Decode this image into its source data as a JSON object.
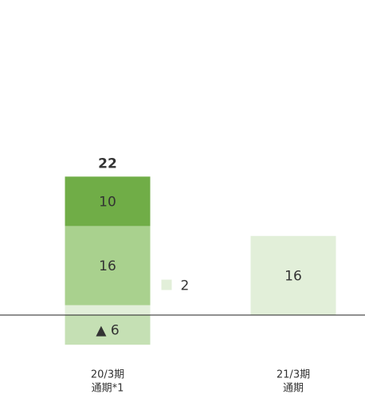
{
  "chart_data": {
    "type": "stacked_bar",
    "categories": [
      [
        "20/3期",
        "通期*1"
      ],
      [
        "21/3期",
        "通期"
      ]
    ],
    "series": [
      {
        "color": "#c5e0b4",
        "values": [
          -6,
          null
        ],
        "value_labels": [
          "▲ 6",
          null
        ]
      },
      {
        "color": "#e2efd9",
        "values": [
          2,
          16
        ]
      },
      {
        "color": "#a9d18e",
        "values": [
          16,
          null
        ]
      },
      {
        "color": "#70ad47",
        "values": [
          10,
          null
        ]
      }
    ],
    "totals": [
      22,
      null
    ],
    "ylim": [
      -10,
      50
    ]
  }
}
